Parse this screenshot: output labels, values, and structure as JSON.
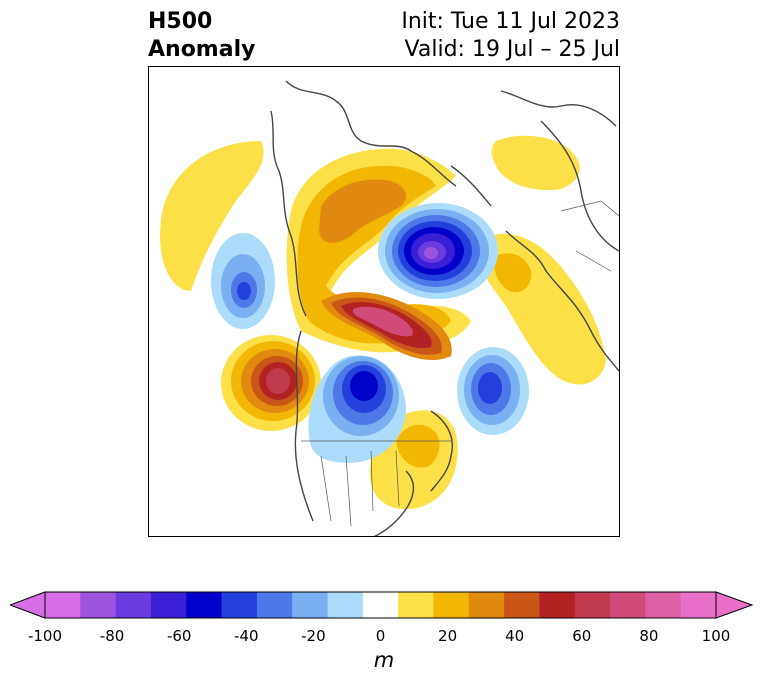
{
  "header": {
    "title_line1": "H500",
    "title_line2": "Anomaly",
    "init_text": "Init: Tue 11 Jul 2023",
    "valid_text": "Valid: 19 Jul – 25 Jul"
  },
  "colorbar": {
    "ticks": [
      "-100",
      "-80",
      "-60",
      "-40",
      "-20",
      "0",
      "20",
      "40",
      "60",
      "80",
      "100"
    ],
    "units": "m",
    "levels": [
      -100,
      -90,
      -80,
      -70,
      -60,
      -50,
      -40,
      -30,
      -20,
      -10,
      10,
      20,
      30,
      40,
      50,
      60,
      70,
      80,
      90,
      100
    ],
    "colors": [
      "#d66ee6",
      "#9d55dd",
      "#6a3be0",
      "#3a1fd6",
      "#0000c8",
      "#2240dc",
      "#4d78e8",
      "#78b0f2",
      "#acdcfb",
      "#ffffff",
      "#fde047",
      "#f2b705",
      "#e08a10",
      "#c85616",
      "#b32222",
      "#c23a4e",
      "#cf4c7a",
      "#dc60a4",
      "#e870c8"
    ],
    "extend_low_color": "#d66ee6",
    "extend_high_color": "#e870c8"
  }
}
